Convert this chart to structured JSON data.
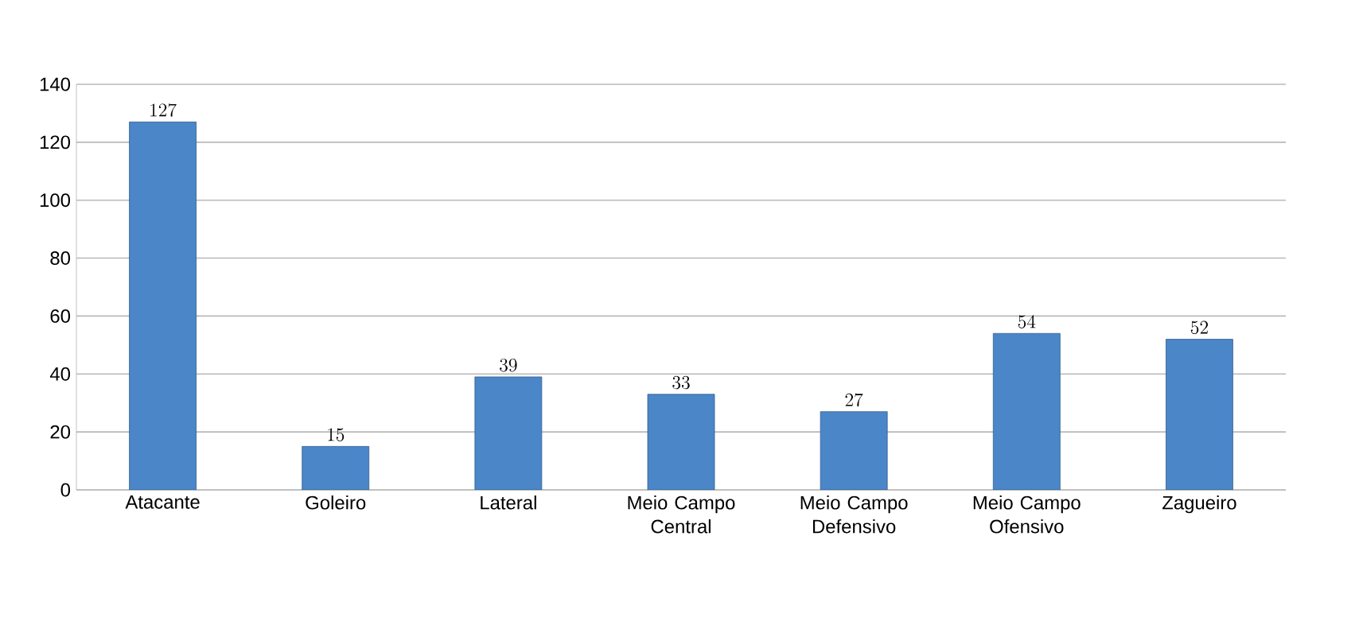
{
  "chart_data": {
    "type": "bar",
    "categories": [
      "Atacante",
      "Goleiro",
      "Lateral",
      "Meio Campo Central",
      "Meio Campo Defensivo",
      "Meio Campo Ofensivo",
      "Zagueiro"
    ],
    "values": [
      127,
      15,
      39,
      33,
      27,
      54,
      52
    ],
    "color": "#4a86c8",
    "ylim": [
      0,
      140
    ],
    "yticks": [
      0,
      20,
      40,
      60,
      80,
      100,
      120,
      140
    ],
    "grid": "y",
    "data_labels": true
  }
}
